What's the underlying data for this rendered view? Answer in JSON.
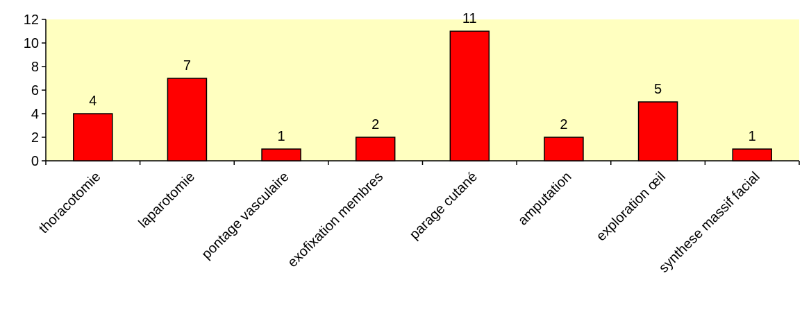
{
  "chart_data": {
    "type": "bar",
    "title": "",
    "xlabel": "",
    "ylabel": "",
    "categories": [
      "thoracotomie",
      "laparotomie",
      "pontage vasculaire",
      "exofixation membres",
      "parage cutané",
      "amputation",
      "exploration œil",
      "synthese massif facial"
    ],
    "values": [
      4,
      7,
      1,
      2,
      11,
      2,
      5,
      1
    ],
    "ylim": [
      0,
      12
    ],
    "yticks": [
      0,
      2,
      4,
      6,
      8,
      10,
      12
    ],
    "grid": false,
    "legend": "none",
    "colors": {
      "bar_fill": "#ff0000",
      "bar_stroke": "#000000",
      "plot_background": "#ffffc0"
    }
  }
}
